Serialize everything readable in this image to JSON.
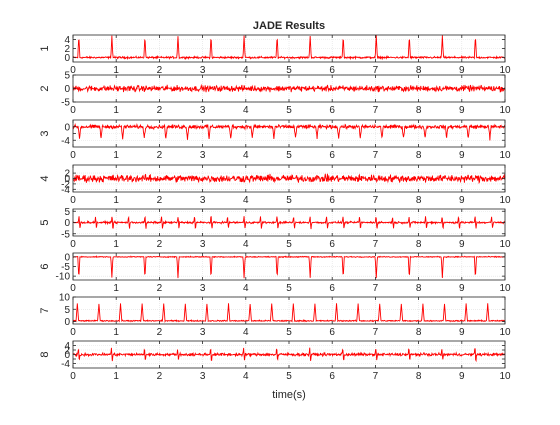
{
  "figure": {
    "title": "JADE Results"
  },
  "chart_data": {
    "type": "line",
    "title": "JADE Results",
    "xlabel": "time(s)",
    "xlim": [
      0,
      10
    ],
    "x_ticks": [
      0,
      1,
      2,
      3,
      4,
      5,
      6,
      7,
      8,
      9,
      10
    ],
    "grid": true,
    "line_color": "#ff0000",
    "series": [
      {
        "name": "1",
        "ylim": [
          -1,
          5
        ],
        "yticks": [
          {
            "v": 0,
            "label": "0"
          },
          {
            "v": 2,
            "label": "2"
          },
          {
            "v": 4,
            "label": "4"
          }
        ],
        "pattern": {
          "kind": "spike",
          "amp": 4.8,
          "width": 0.025,
          "period": 0.765,
          "phase": 0.9,
          "noise": 0.3,
          "baseline": 0
        }
      },
      {
        "name": "2",
        "ylim": [
          -5,
          5
        ],
        "yticks": [
          {
            "v": -5,
            "label": "-5"
          },
          {
            "v": 0,
            "label": "0"
          },
          {
            "v": 5,
            "label": "5"
          }
        ],
        "pattern": {
          "kind": "noise",
          "amp": 1.6,
          "baseline": 0
        }
      },
      {
        "name": "3",
        "ylim": [
          -6,
          2
        ],
        "yticks": [
          {
            "v": -4,
            "label": "-4"
          },
          {
            "v": -2,
            "label": ""
          },
          {
            "v": 0,
            "label": "0"
          }
        ],
        "pattern": {
          "kind": "spike",
          "amp": -3.5,
          "width": 0.03,
          "period": 0.5,
          "phase": 0.15,
          "noise": 0.8,
          "baseline": 0
        }
      },
      {
        "name": "4",
        "ylim": [
          -5,
          5
        ],
        "yticks": [
          {
            "v": -4,
            "label": "-4"
          },
          {
            "v": -2,
            "label": "-2"
          },
          {
            "v": 0,
            "label": "0"
          },
          {
            "v": 2,
            "label": "2"
          }
        ],
        "pattern": {
          "kind": "noise",
          "amp": 2.0,
          "baseline": 0
        }
      },
      {
        "name": "5",
        "ylim": [
          -6,
          6
        ],
        "yticks": [
          {
            "v": -5,
            "label": "-5"
          },
          {
            "v": 0,
            "label": "0"
          },
          {
            "v": 5,
            "label": "5"
          }
        ],
        "pattern": {
          "kind": "biphasic",
          "amp": 4.5,
          "width": 0.03,
          "period": 0.382,
          "phase": 0.15,
          "noise": 0.6,
          "baseline": 0
        }
      },
      {
        "name": "6",
        "ylim": [
          -12,
          2
        ],
        "yticks": [
          {
            "v": -10,
            "label": "-10"
          },
          {
            "v": -5,
            "label": "-5"
          },
          {
            "v": 0,
            "label": "0"
          }
        ],
        "pattern": {
          "kind": "spike",
          "amp": -11,
          "width": 0.025,
          "period": 0.765,
          "phase": 0.9,
          "noise": 0.35,
          "baseline": 0
        }
      },
      {
        "name": "7",
        "ylim": [
          -1,
          10
        ],
        "yticks": [
          {
            "v": 0,
            "label": "0"
          },
          {
            "v": 5,
            "label": "5"
          },
          {
            "v": 10,
            "label": "10"
          }
        ],
        "pattern": {
          "kind": "spike",
          "amp": 7,
          "width": 0.03,
          "period": 0.5,
          "phase": 0.1,
          "noise": 0.35,
          "baseline": 0.3
        }
      },
      {
        "name": "8",
        "ylim": [
          -6,
          6
        ],
        "yticks": [
          {
            "v": -4,
            "label": "-4"
          },
          {
            "v": -2,
            "label": ""
          },
          {
            "v": 0,
            "label": "0"
          },
          {
            "v": 2,
            "label": "2"
          },
          {
            "v": 4,
            "label": "4"
          }
        ],
        "pattern": {
          "kind": "biphasic",
          "amp": 4.5,
          "width": 0.03,
          "period": 0.765,
          "phase": 0.9,
          "noise": 0.9,
          "baseline": 0
        }
      }
    ]
  }
}
